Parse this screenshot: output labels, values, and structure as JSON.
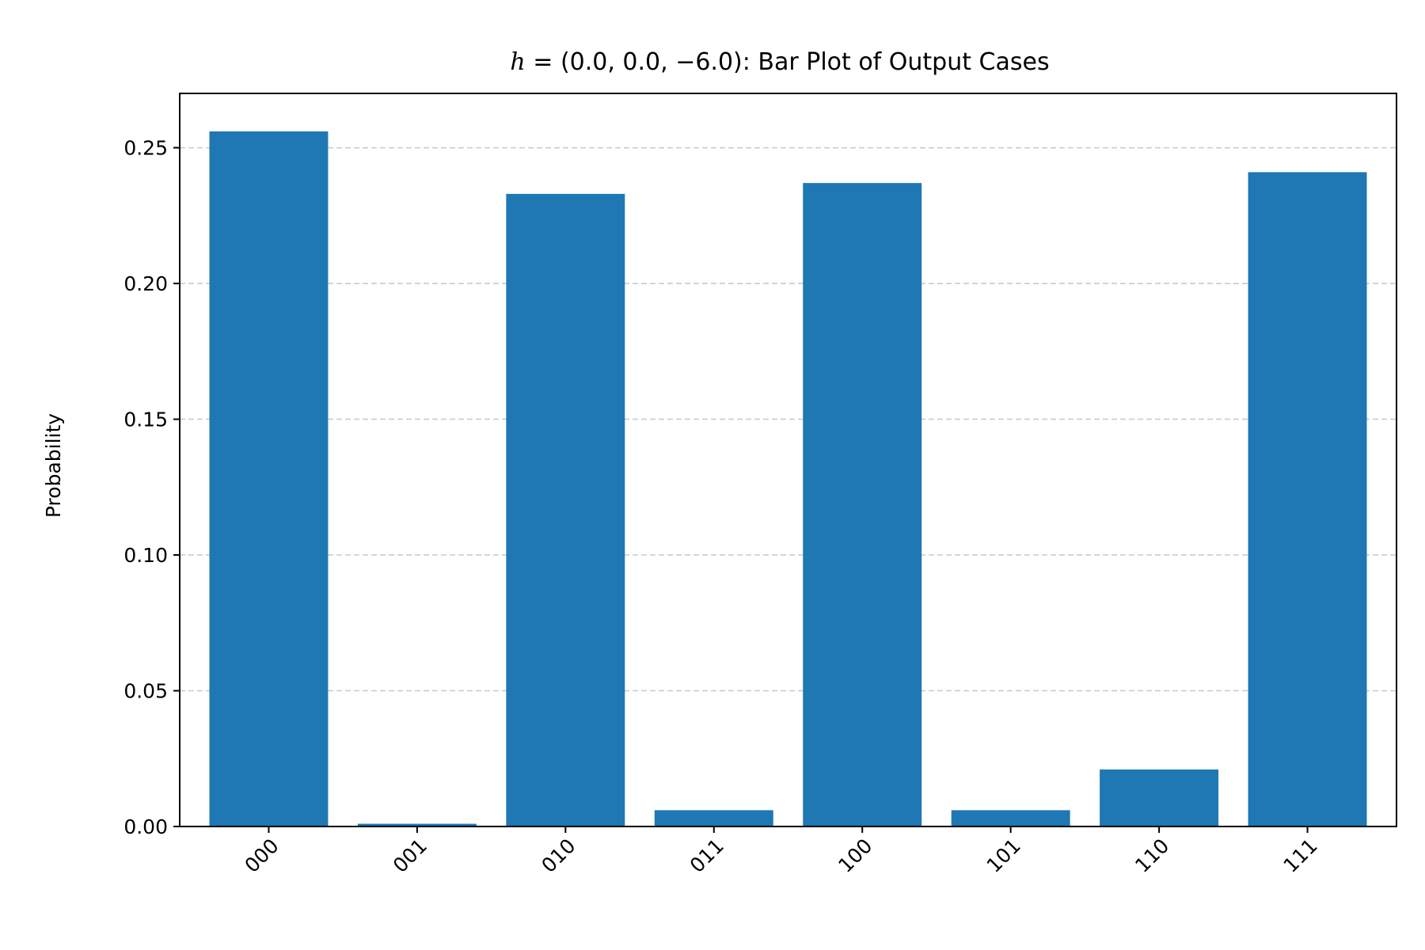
{
  "chart_data": {
    "type": "bar",
    "title": "h = (0.0, 0.0, −6.0): Bar Plot of Output Cases",
    "title_parts": {
      "math_h": "h",
      "math_eq": " = (0.0, 0.0, −6.0)",
      "rest": ": Bar Plot of Output Cases"
    },
    "xlabel": "",
    "ylabel": "Probability",
    "categories": [
      "000",
      "001",
      "010",
      "011",
      "100",
      "101",
      "110",
      "111"
    ],
    "values": [
      0.256,
      0.001,
      0.233,
      0.006,
      0.237,
      0.006,
      0.021,
      0.241
    ],
    "ylim": [
      0,
      0.27
    ],
    "yticks": [
      0.0,
      0.05,
      0.1,
      0.15,
      0.2,
      0.25
    ],
    "ytick_labels": [
      "0.00",
      "0.05",
      "0.10",
      "0.15",
      "0.20",
      "0.25"
    ],
    "grid": "y-dashed",
    "bar_color": "#1f77b4",
    "grid_color": "#c8c8c8"
  }
}
